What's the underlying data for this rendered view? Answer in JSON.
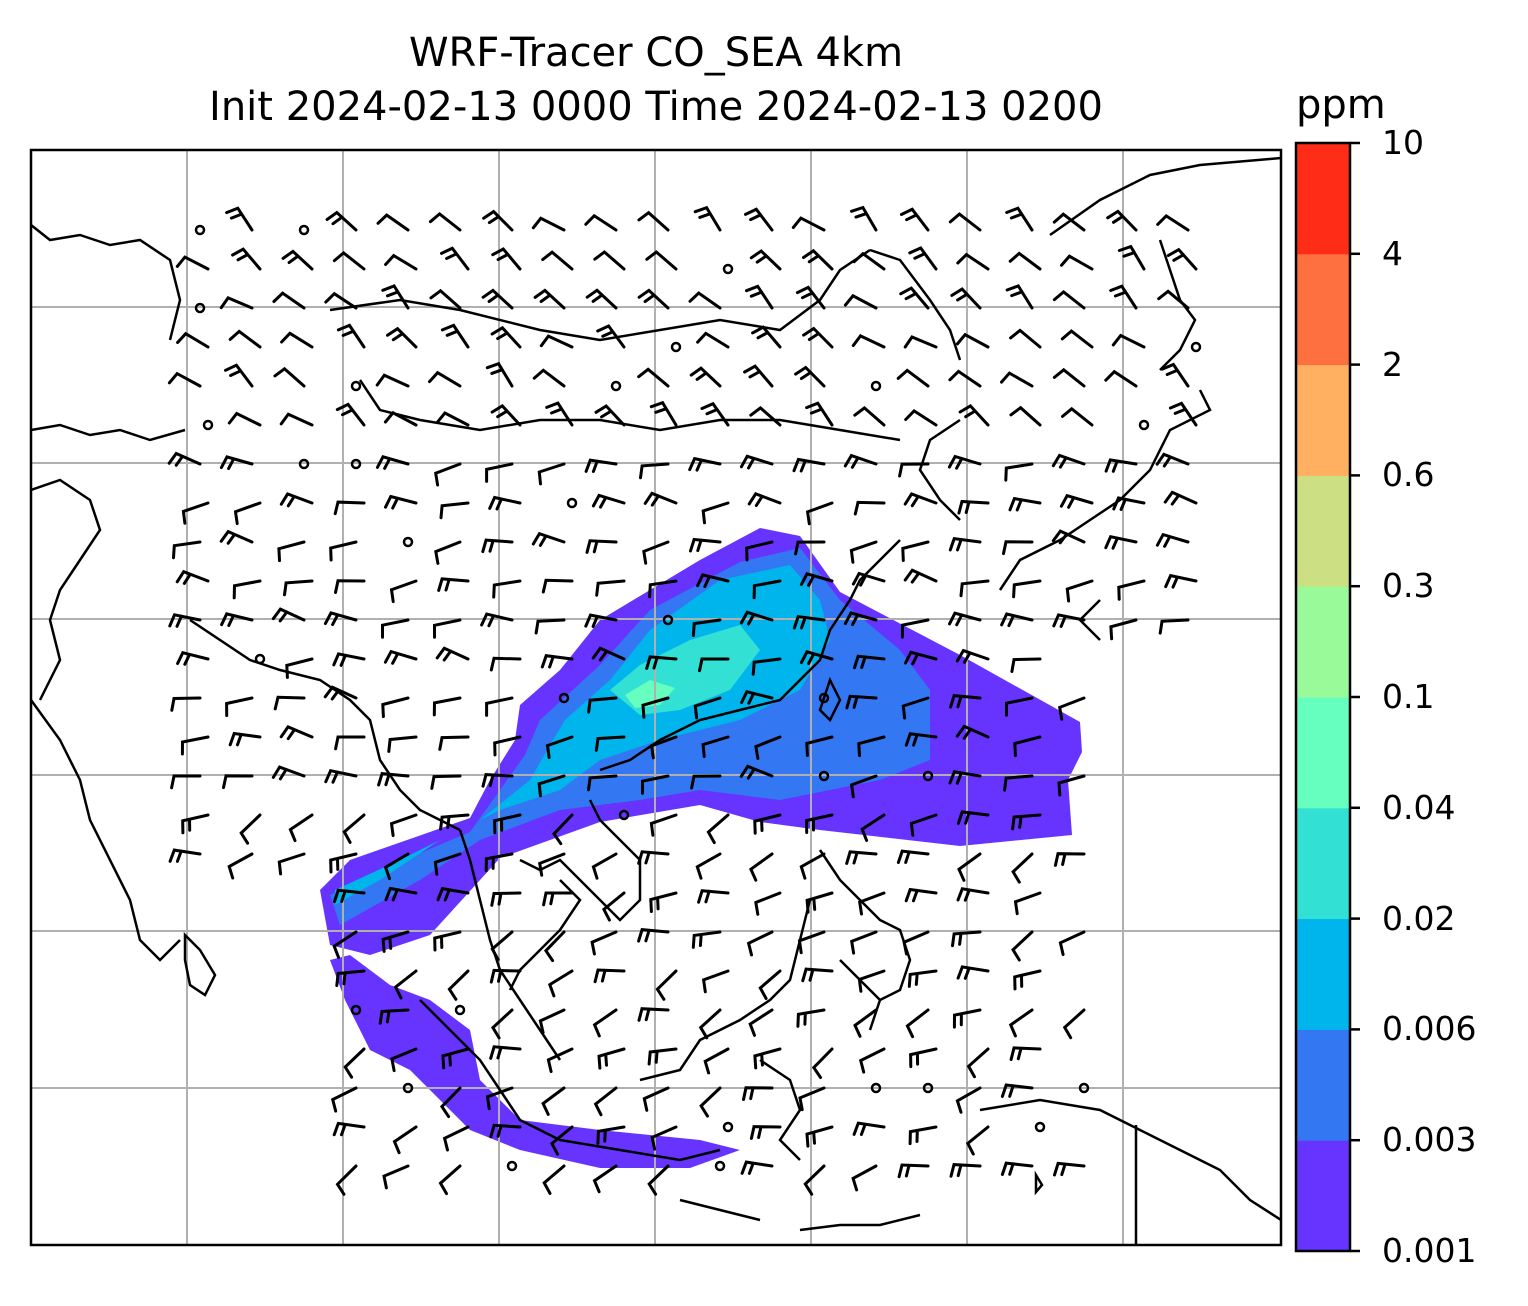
{
  "title_line1": "WRF-Tracer CO_SEA 4km",
  "title_line2": "Init 2024-02-13 0000 Time 2024-02-13 0200",
  "colorbar": {
    "unit": "ppm",
    "levels": [
      "0.001",
      "0.003",
      "0.006",
      "0.02",
      "0.04",
      "0.1",
      "0.3",
      "0.6",
      "2",
      "4",
      "10"
    ],
    "colors": [
      "#6633ff",
      "#3377f2",
      "#00b4ec",
      "#33e0d4",
      "#66ffc0",
      "#99fa99",
      "#cce083",
      "#ffb060",
      "#ff7040",
      "#ff2c18"
    ]
  },
  "map": {
    "gridlines": true,
    "coastline_color": "#000000",
    "wind_barb_color": "#000000"
  }
}
